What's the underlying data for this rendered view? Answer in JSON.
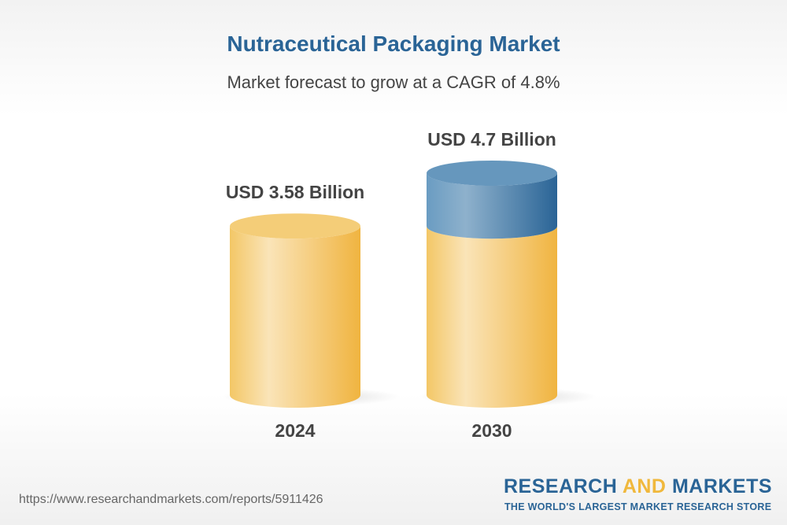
{
  "title": "Nutraceutical Packaging Market",
  "subtitle": "Market forecast to grow at a CAGR of 4.8%",
  "chart_data": {
    "type": "bar",
    "style": "3d-cylinder",
    "categories": [
      "2024",
      "2030"
    ],
    "values": [
      3.58,
      4.7
    ],
    "data_labels": [
      "USD 3.58 Billion",
      "USD 4.7 Billion"
    ],
    "unit": "USD Billion",
    "colors": {
      "base": "#f0b83c",
      "growth": "#2a6496"
    }
  },
  "footer": {
    "url": "https://www.researchandmarkets.com/reports/5911426",
    "logo_main_1": "RESEARCH ",
    "logo_and": "AND",
    "logo_main_2": " MARKETS",
    "tagline": "THE WORLD'S LARGEST MARKET RESEARCH STORE"
  }
}
